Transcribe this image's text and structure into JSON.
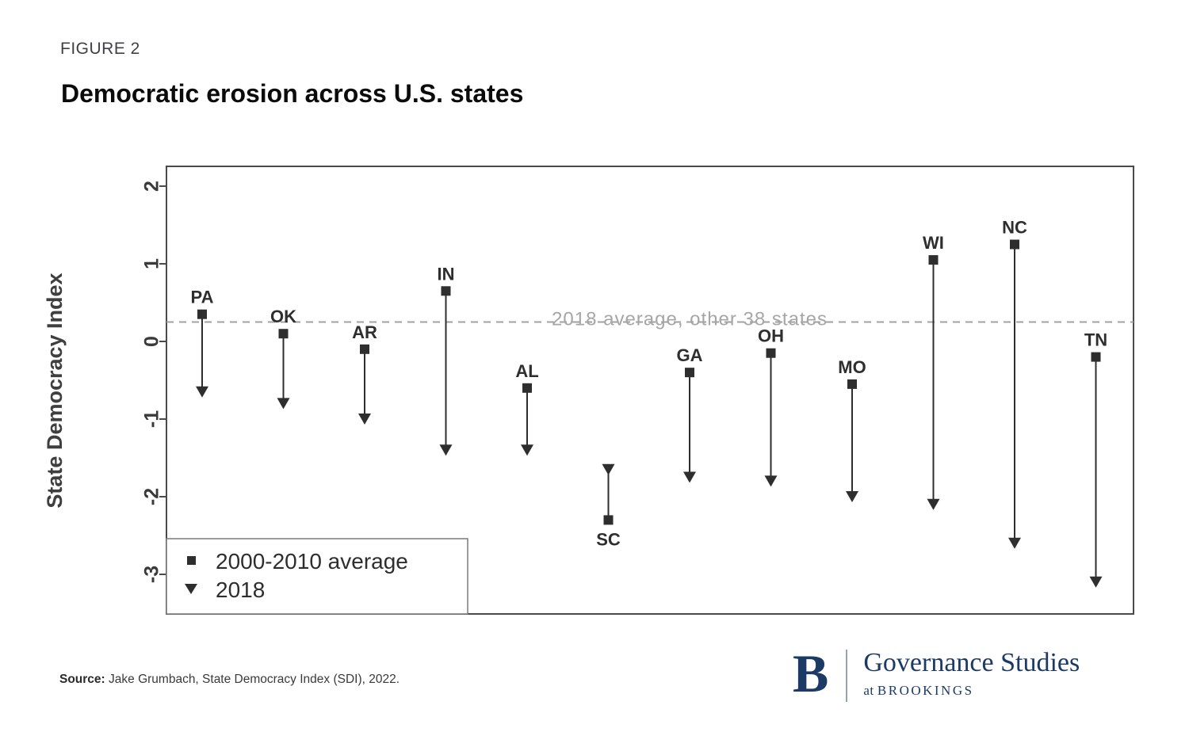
{
  "figure_label": "FIGURE 2",
  "title": "Democratic erosion across U.S. states",
  "colors": {
    "ink": "#2e2e2e",
    "axis": "#4a4a4a",
    "reference_line": "#a0a0a0",
    "reference_text": "#a6a6a6",
    "brand_blue": "#1b3a66"
  },
  "chart_data": {
    "type": "dumbbell-range",
    "title": "Democratic erosion across U.S. states",
    "ylabel": "State Democracy Index",
    "xlabel": "",
    "yticks": [
      2,
      1,
      0,
      -1,
      -2,
      -3
    ],
    "ylim": [
      -3.35,
      2.3
    ],
    "grid": false,
    "legend_position": "bottom-left-inside",
    "reference_line": {
      "value": 0.25,
      "label": "2018 average, other 38 states",
      "style": "dashed"
    },
    "legend": [
      {
        "marker": "square",
        "label": "2000-2010 average"
      },
      {
        "marker": "triangle-down",
        "label": "2018"
      }
    ],
    "series_names": [
      "2000-2010 average",
      "2018"
    ],
    "states": [
      {
        "state": "PA",
        "avg_2000_2010": 0.35,
        "value_2018": -0.65,
        "label_position": "above"
      },
      {
        "state": "OK",
        "avg_2000_2010": 0.1,
        "value_2018": -0.8,
        "label_position": "above"
      },
      {
        "state": "AR",
        "avg_2000_2010": -0.1,
        "value_2018": -1.0,
        "label_position": "above"
      },
      {
        "state": "IN",
        "avg_2000_2010": 0.65,
        "value_2018": -1.4,
        "label_position": "above"
      },
      {
        "state": "AL",
        "avg_2000_2010": -0.6,
        "value_2018": -1.4,
        "label_position": "above"
      },
      {
        "state": "SC",
        "avg_2000_2010": -2.3,
        "value_2018": -1.65,
        "label_position": "below"
      },
      {
        "state": "GA",
        "avg_2000_2010": -0.4,
        "value_2018": -1.75,
        "label_position": "above"
      },
      {
        "state": "OH",
        "avg_2000_2010": -0.15,
        "value_2018": -1.8,
        "label_position": "above"
      },
      {
        "state": "MO",
        "avg_2000_2010": -0.55,
        "value_2018": -2.0,
        "label_position": "above"
      },
      {
        "state": "WI",
        "avg_2000_2010": 1.05,
        "value_2018": -2.1,
        "label_position": "above"
      },
      {
        "state": "NC",
        "avg_2000_2010": 1.25,
        "value_2018": -2.6,
        "label_position": "above"
      },
      {
        "state": "TN",
        "avg_2000_2010": -0.2,
        "value_2018": -3.1,
        "label_position": "above"
      }
    ]
  },
  "source": {
    "prefix": "Source:",
    "text": " Jake Grumbach, State Democracy Index (SDI), 2022."
  },
  "branding": {
    "monogram": "B",
    "name": "Governance Studies",
    "tagline_prefix": "at",
    "tagline": "BROOKINGS"
  }
}
